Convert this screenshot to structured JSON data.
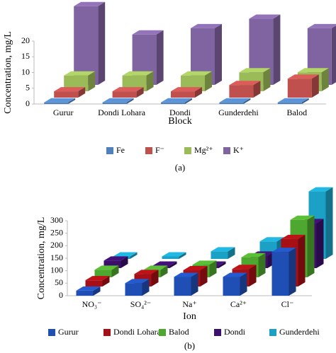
{
  "chart_data": [
    {
      "type": "bar3d",
      "caption": "(a)",
      "x_label": "Block",
      "y_label": "Concentration, mg/L",
      "categories": [
        "Gurur",
        "Dondi Lohara",
        "Dondi",
        "Gunderdehi",
        "Balod"
      ],
      "series": [
        {
          "name": "Fe",
          "color": "#4f81bd",
          "values": [
            0.5,
            0.5,
            0.5,
            0.5,
            0.5
          ]
        },
        {
          "name": "F⁻",
          "color": "#c0504d",
          "values": [
            2,
            2,
            2,
            4,
            6
          ]
        },
        {
          "name": "Mg²⁺",
          "color": "#9bbb59",
          "values": [
            5,
            5,
            5,
            6,
            6
          ]
        },
        {
          "name": "K⁺",
          "color": "#8064a2",
          "values": [
            25,
            16,
            18,
            21,
            18
          ]
        }
      ],
      "ylim": [
        0,
        20
      ],
      "yticks": [
        0,
        5,
        10,
        15,
        20
      ]
    },
    {
      "type": "bar3d",
      "caption": "(b)",
      "x_label": "Ion",
      "y_label": "Concentration, mg/L",
      "categories": [
        "NO₃⁻",
        "SO₄²⁻",
        "Na⁺",
        "Ca²⁺",
        "Cl⁻"
      ],
      "series": [
        {
          "name": "Gurur",
          "color": "#1f4eb4",
          "values": [
            20,
            50,
            75,
            75,
            175
          ]
        },
        {
          "name": "Dondi Lohara",
          "color": "#a50f15",
          "values": [
            25,
            50,
            65,
            70,
            190
          ]
        },
        {
          "name": "Balod",
          "color": "#4ea72e",
          "values": [
            30,
            30,
            50,
            80,
            230
          ]
        },
        {
          "name": "Dondi",
          "color": "#3b0f6b",
          "values": [
            30,
            10,
            10,
            50,
            180
          ]
        },
        {
          "name": "Gunderdehi",
          "color": "#1ba1c5",
          "values": [
            10,
            10,
            30,
            70,
            270
          ]
        }
      ],
      "ylim": [
        0,
        300
      ],
      "yticks": [
        0,
        50,
        100,
        150,
        200,
        250,
        300
      ]
    }
  ]
}
